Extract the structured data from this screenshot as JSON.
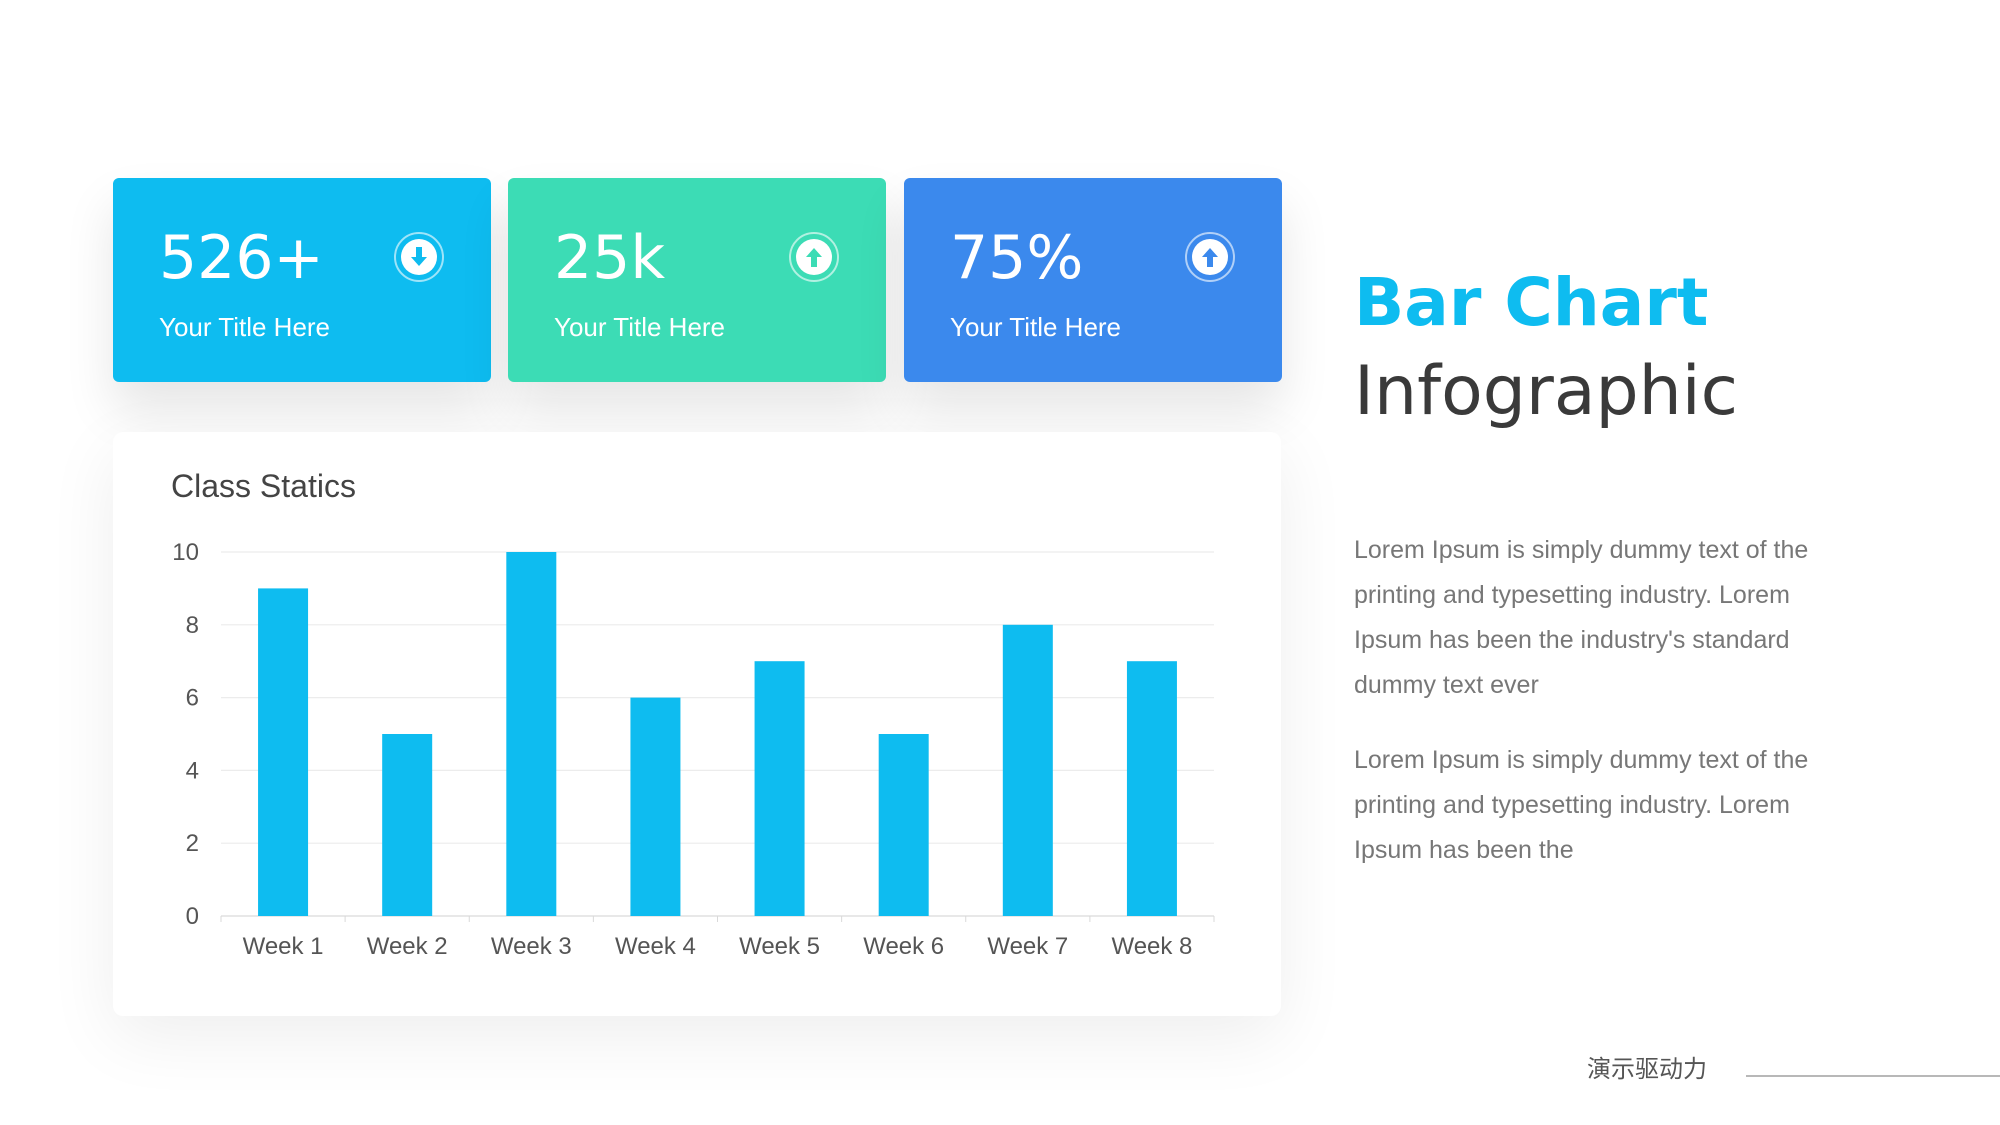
{
  "cards": [
    {
      "value": "526+",
      "label": "Your Title Here",
      "icon": "arrow-down-icon",
      "color": "#0ebcf0",
      "arrow_color": "#0ebcf0"
    },
    {
      "value": "25k",
      "label": "Your Title Here",
      "icon": "arrow-up-icon",
      "color": "#3cdcb5",
      "arrow_color": "#3cdcb5"
    },
    {
      "value": "75%",
      "label": "Your Title Here",
      "icon": "arrow-up-icon",
      "color": "#3b89ed",
      "arrow_color": "#3b89ed"
    }
  ],
  "headline": {
    "line1": "Bar Chart",
    "line2": "Infographic"
  },
  "paragraphs": [
    "Lorem Ipsum is simply dummy text of the printing and typesetting industry. Lorem Ipsum has been the industry's standard dummy text ever",
    "Lorem Ipsum is simply dummy text of the printing and typesetting industry. Lorem Ipsum has been the"
  ],
  "footer": {
    "text": "演示驱动力"
  },
  "chart_data": {
    "type": "bar",
    "title": "Class Statics",
    "categories": [
      "Week 1",
      "Week 2",
      "Week 3",
      "Week 4",
      "Week 5",
      "Week 6",
      "Week 7",
      "Week 8"
    ],
    "values": [
      9,
      5,
      10,
      6,
      7,
      5,
      8,
      7
    ],
    "ylim": [
      0,
      10
    ],
    "yticks": [
      0,
      2,
      4,
      6,
      8,
      10
    ],
    "grid": true,
    "bar_color": "#0ebcf0"
  }
}
